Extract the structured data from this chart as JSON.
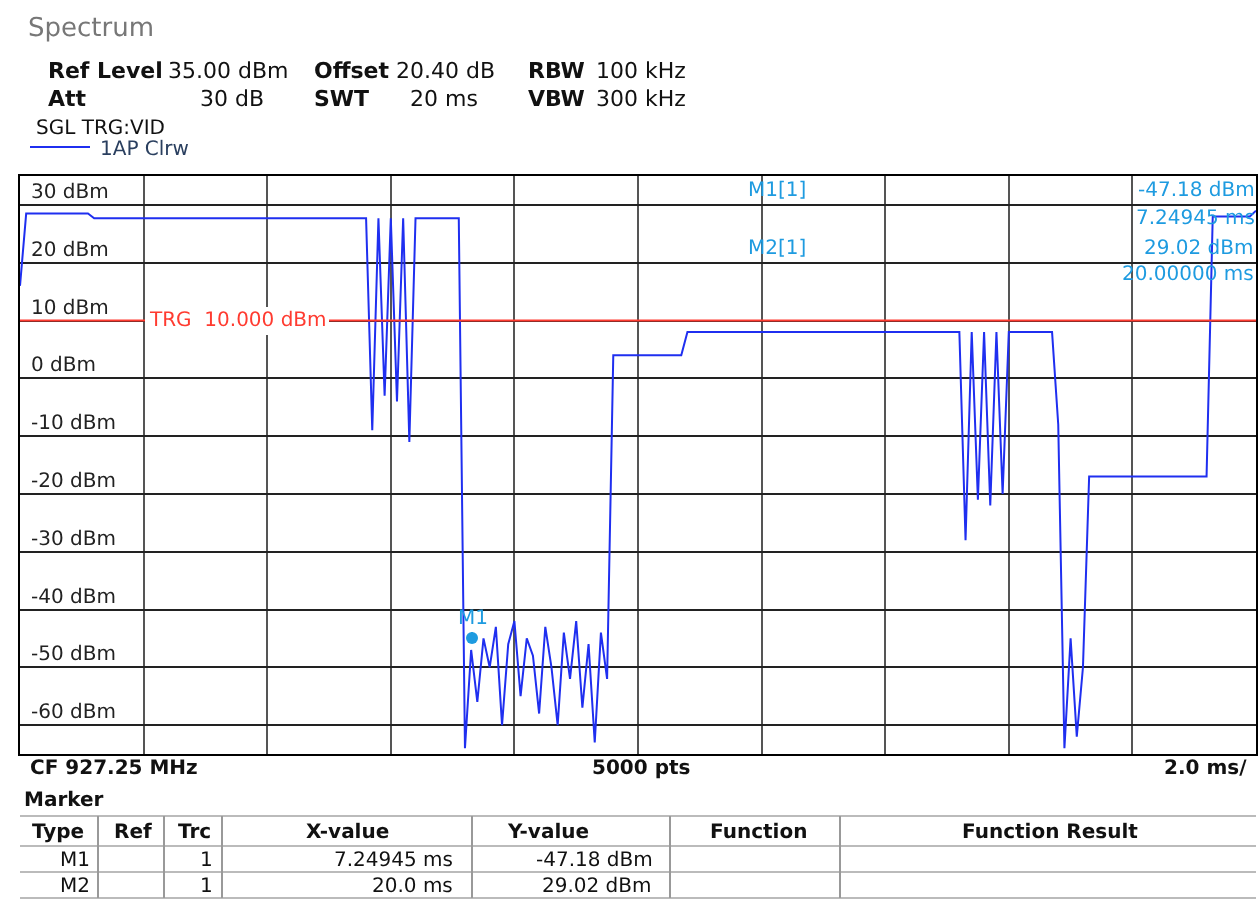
{
  "chart_data": {
    "type": "line",
    "categories": [
      null,
      null,
      null,
      null,
      null,
      null,
      null,
      null,
      null,
      null,
      null,
      null,
      null,
      null,
      null,
      null,
      null,
      null,
      null,
      null,
      null,
      null,
      null,
      null,
      null,
      null,
      null,
      null,
      null,
      null,
      null,
      null,
      null,
      null,
      null,
      null,
      null,
      null,
      null,
      null,
      null,
      null,
      null,
      null,
      null,
      null,
      null,
      null,
      null,
      null,
      null,
      null,
      null,
      null,
      null,
      null,
      null,
      null,
      null,
      null,
      null,
      null,
      null,
      null,
      null,
      null,
      null,
      null,
      null,
      null,
      null,
      null,
      null,
      null,
      null,
      null,
      null,
      null,
      null,
      null,
      null,
      null,
      null,
      null,
      null,
      null,
      null,
      null,
      null,
      null,
      null,
      null,
      null,
      null,
      null,
      null,
      null,
      null,
      null,
      null,
      null,
      null,
      null,
      null,
      null,
      null,
      null,
      null,
      null,
      null,
      null,
      null,
      null,
      null,
      null,
      null,
      null,
      null,
      null,
      null,
      null,
      null,
      null,
      null,
      null,
      null,
      null,
      null,
      null,
      null,
      null,
      null,
      null,
      null,
      null,
      null,
      null,
      null,
      null,
      null,
      null,
      null,
      null,
      null,
      null,
      null,
      null,
      null,
      null,
      null,
      null,
      null,
      null,
      null,
      null,
      null,
      null,
      null,
      null,
      null,
      null,
      null,
      null,
      null,
      null,
      null,
      null,
      null,
      null,
      null,
      null,
      null,
      null,
      null,
      null,
      null,
      null,
      null,
      null,
      null,
      null,
      null,
      null,
      null,
      null,
      null,
      null,
      null,
      null,
      null,
      null,
      null,
      null,
      null,
      null,
      null,
      null,
      null,
      null,
      null,
      null
    ],
    "series": [
      {
        "name": "1AP Clrw",
        "color": "#1f2ff0",
        "values": [
          16,
          28.5,
          28.5,
          28.5,
          28.5,
          28.5,
          28.5,
          28.5,
          28.5,
          28.5,
          28.5,
          28.5,
          27.7,
          27.7,
          27.7,
          27.7,
          27.7,
          27.7,
          27.7,
          27.7,
          27.7,
          27.7,
          27.7,
          27.7,
          27.7,
          27.7,
          27.7,
          27.7,
          27.7,
          27.7,
          27.7,
          27.7,
          27.7,
          27.7,
          27.7,
          27.7,
          27.7,
          27.7,
          27.7,
          27.7,
          27.7,
          27.7,
          27.7,
          27.7,
          27.7,
          27.7,
          27.7,
          27.7,
          27.7,
          27.7,
          27.7,
          27.7,
          27.7,
          27.7,
          27.7,
          27.7,
          27.7,
          -9,
          27.7,
          -3,
          27.7,
          -4,
          27.7,
          -11,
          27.7,
          27.7,
          27.7,
          27.7,
          27.7,
          27.7,
          27.7,
          27.7,
          -64,
          -47,
          -56,
          -45,
          -50,
          -43,
          -60,
          -46,
          -42,
          -55,
          -45,
          -48,
          -58,
          -43,
          -50,
          -60,
          -44,
          -52,
          -42,
          -57,
          -46,
          -63,
          -44,
          -52,
          4,
          4,
          4,
          4,
          4,
          4,
          4,
          4,
          4,
          4,
          4,
          4,
          8,
          8,
          8,
          8,
          8,
          8,
          8,
          8,
          8,
          8,
          8,
          8,
          8,
          8,
          8,
          8,
          8,
          8,
          8,
          8,
          8,
          8,
          8,
          8,
          8,
          8,
          8,
          8,
          8,
          8,
          8,
          8,
          8,
          8,
          8,
          8,
          8,
          8,
          8,
          8,
          8,
          8,
          8,
          8,
          8,
          -28,
          8,
          -21,
          8,
          -22,
          8,
          -20,
          8,
          8,
          8,
          8,
          8,
          8,
          8,
          8,
          -8,
          -64,
          -45,
          -62,
          -50,
          -17,
          -17,
          -17,
          -17,
          -17,
          -17,
          -17,
          -17,
          -17,
          -17,
          -17,
          -17,
          -17,
          -17,
          -17,
          -17,
          -17,
          -17,
          -17,
          -17,
          28,
          28,
          28,
          28,
          28,
          28,
          28,
          29
        ]
      }
    ],
    "ylim": [
      -65,
      35
    ],
    "yticks": [
      {
        "value": -60,
        "label": "-60 dBm"
      },
      {
        "value": -50,
        "label": "-50 dBm"
      },
      {
        "value": -40,
        "label": "-40 dBm"
      },
      {
        "value": -30,
        "label": "-30 dBm"
      },
      {
        "value": -20,
        "label": "-20 dBm"
      },
      {
        "value": -10,
        "label": "-10 dBm"
      },
      {
        "value": 0,
        "label": "0 dBm"
      },
      {
        "value": 10,
        "label": "10 dBm"
      },
      {
        "value": 20,
        "label": "20 dBm"
      },
      {
        "value": 30,
        "label": "30 dBm"
      }
    ],
    "tick_labels": "y",
    "grid": true,
    "legend": "top left",
    "marker": "none",
    "line_style": "solid",
    "ref_lines": [
      {
        "axis": "y",
        "value": 10,
        "label": "TRG  10.000 dBm",
        "color": "#ff3b30"
      }
    ],
    "annotations": [
      "M1",
      "Spectrum",
      "Ref Level",
      "35.00 dBm",
      "Offset",
      "20.40 dB",
      "RBW",
      "100 kHz",
      "Att",
      "30 dB",
      "SWT",
      "20 ms",
      "VBW",
      "300 kHz",
      "SGL TRG:VID",
      "M1[1]",
      "-47.18 dBm",
      "7.24945 ms",
      "M2[1]",
      "29.02 dBm",
      "20.00000 ms",
      "CF 927.25 MHz",
      "5000 pts",
      "2.0 ms/",
      "Marker",
      "Type",
      "Ref",
      "Trc",
      "X-value",
      "Y-value",
      "Function",
      "Function Result",
      "M1",
      "1",
      "7.24945 ms",
      "-47.18 dBm",
      "M2",
      "1",
      "20.0 ms",
      "29.02 dBm"
    ]
  }
}
